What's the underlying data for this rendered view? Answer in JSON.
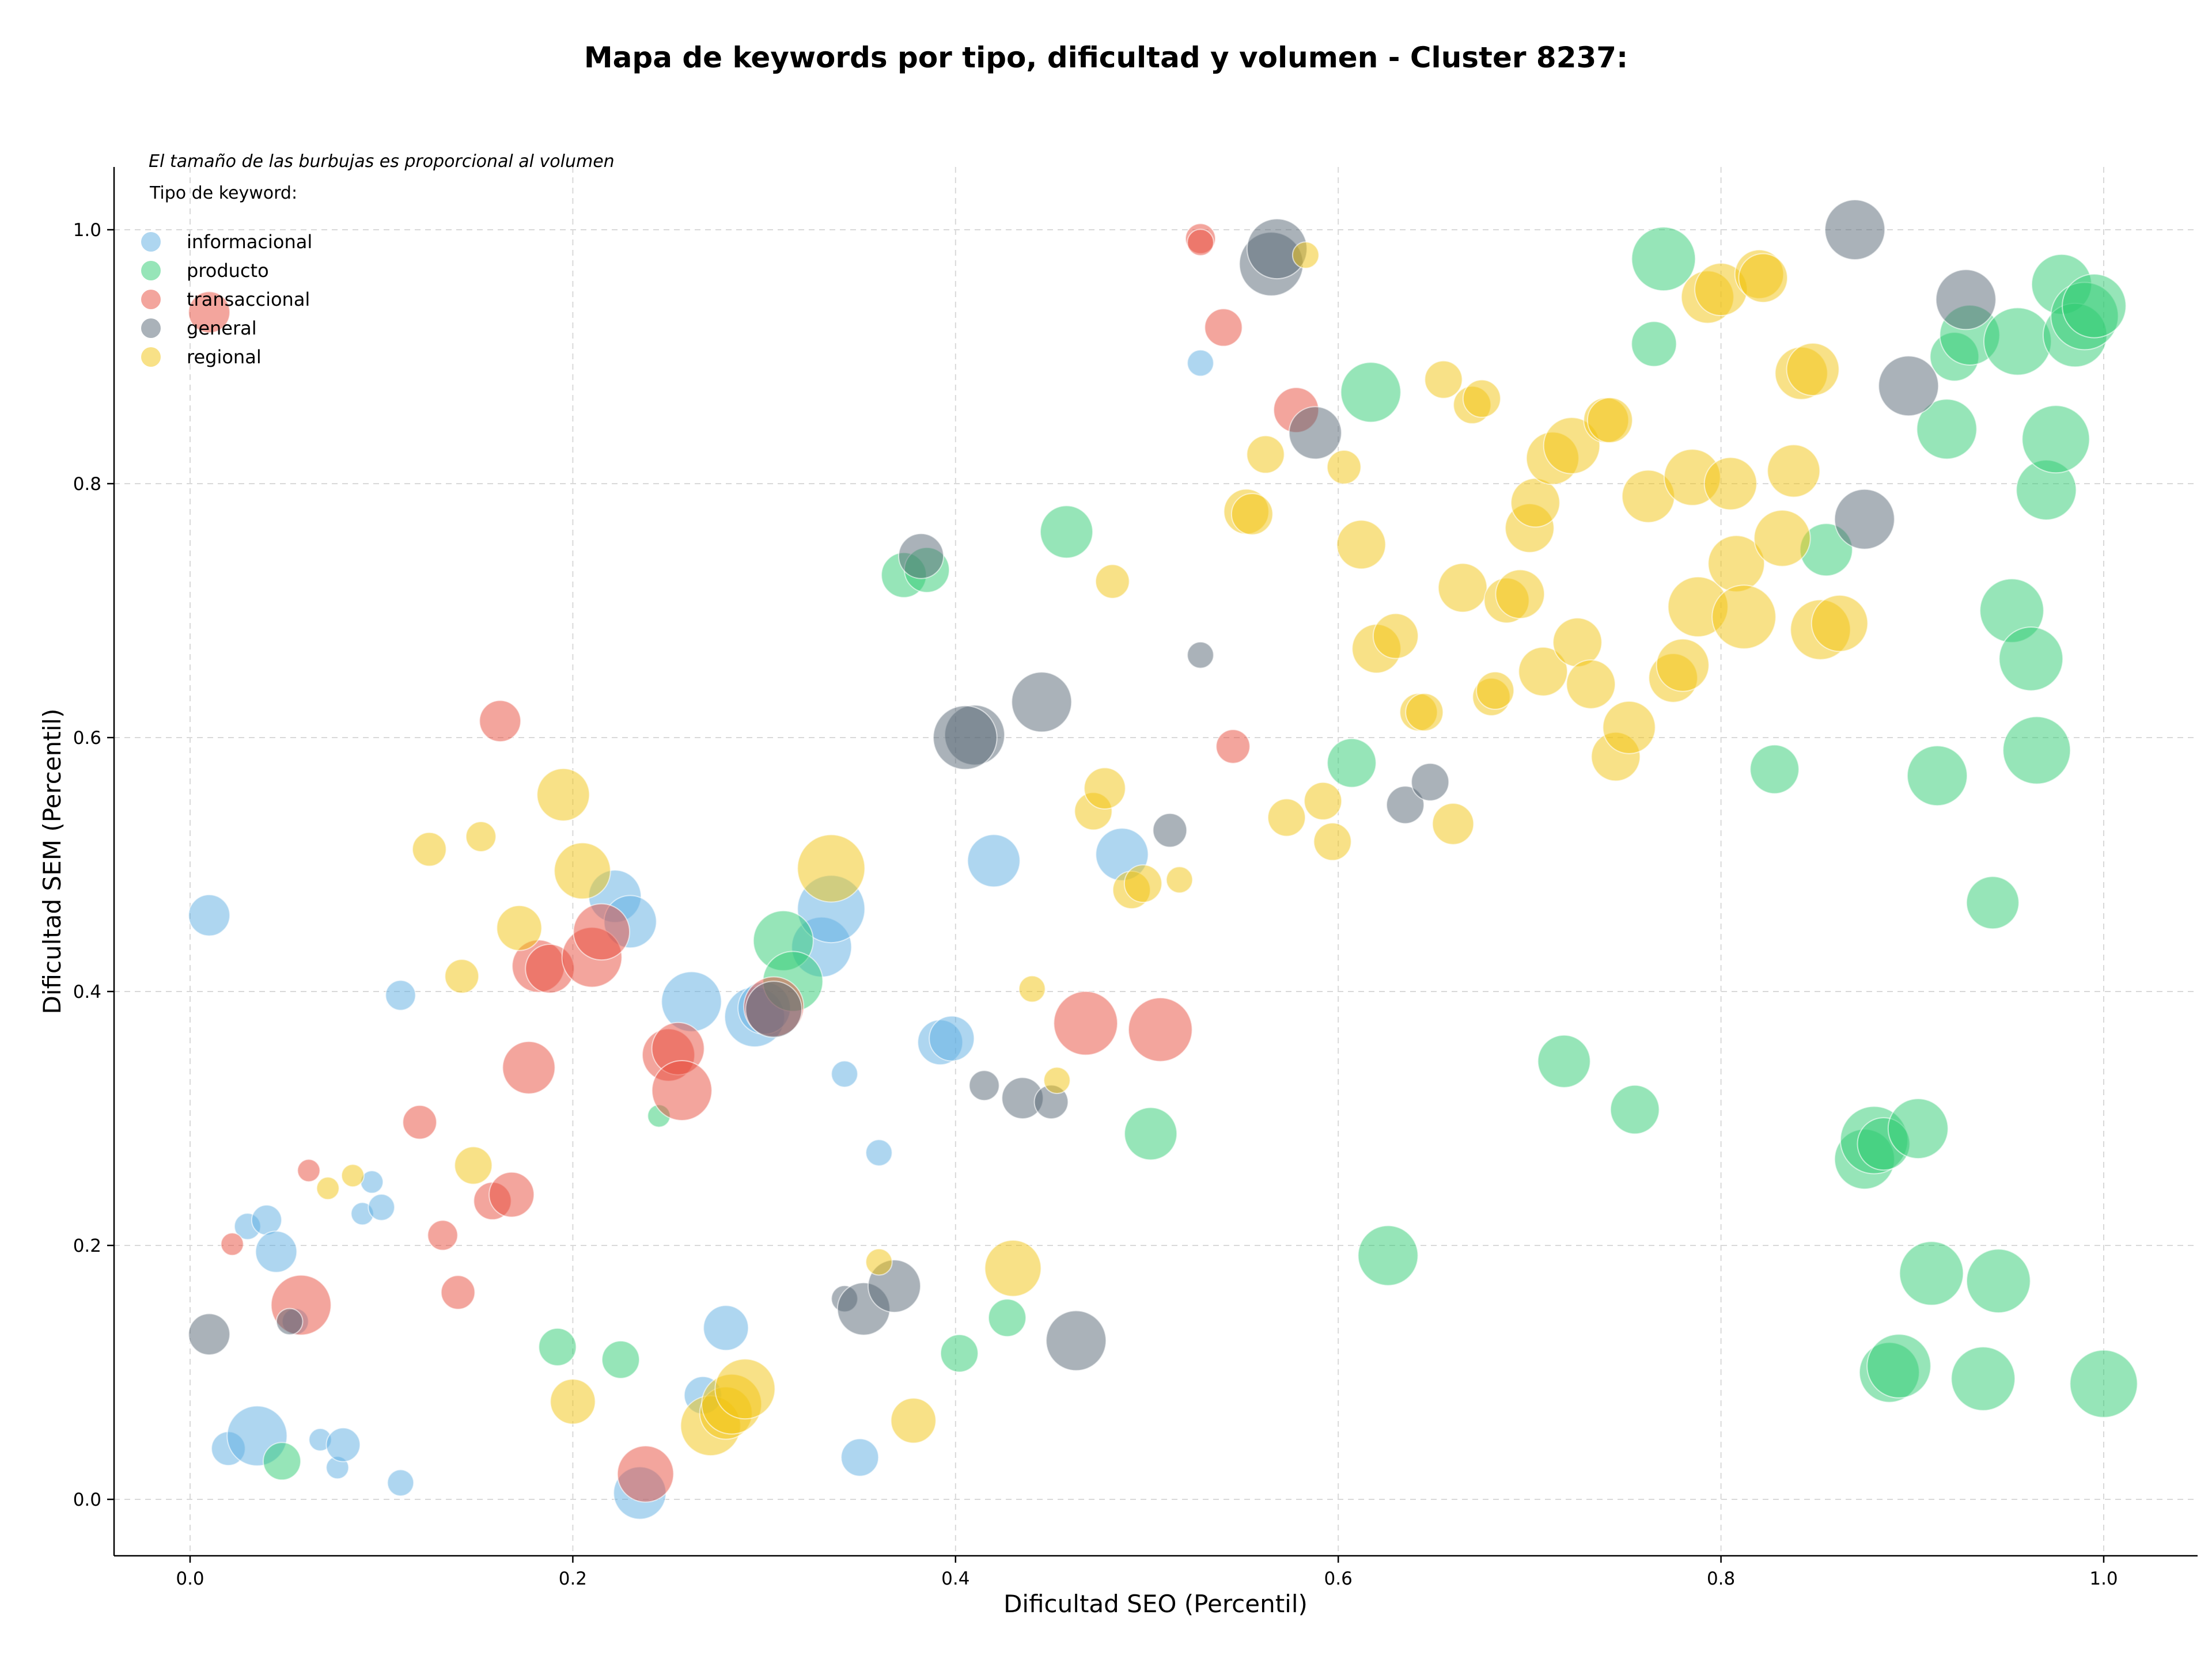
{
  "chart_data": {
    "type": "scatter",
    "title": "Mapa de keywords por tipo, dificultad y volumen - Cluster 8237:",
    "xlabel": "Dificultad SEO (Percentil)",
    "ylabel": "Dificultad SEM (Percentil)",
    "xlim": [
      -0.04,
      1.05
    ],
    "ylim": [
      -0.045,
      1.05
    ],
    "xticks": [
      0.0,
      0.2,
      0.4,
      0.6,
      0.8,
      1.0
    ],
    "yticks": [
      0.0,
      0.2,
      0.4,
      0.6,
      0.8,
      1.0
    ],
    "xtick_labels": [
      "0.0",
      "0.2",
      "0.4",
      "0.6",
      "0.8",
      "1.0"
    ],
    "ytick_labels": [
      "0.0",
      "0.2",
      "0.4",
      "0.6",
      "0.8",
      "1.0"
    ],
    "grid": true,
    "note": "El tamaño de las burbujas es proporcional al volumen",
    "legend_title": "Tipo de keyword:",
    "legend_position": "top-left",
    "series": [
      {
        "name": "informacional",
        "color": "#5dade2",
        "points": [
          [
            0.01,
            0.46,
            5.5
          ],
          [
            0.02,
            0.04,
            4.5
          ],
          [
            0.03,
            0.215,
            3.5
          ],
          [
            0.035,
            0.05,
            8
          ],
          [
            0.04,
            0.22,
            4
          ],
          [
            0.045,
            0.195,
            5.5
          ],
          [
            0.055,
            0.14,
            3.5
          ],
          [
            0.068,
            0.047,
            3
          ],
          [
            0.077,
            0.025,
            3
          ],
          [
            0.08,
            0.043,
            4.5
          ],
          [
            0.09,
            0.225,
            3
          ],
          [
            0.095,
            0.25,
            3
          ],
          [
            0.1,
            0.23,
            3.5
          ],
          [
            0.11,
            0.013,
            3.5
          ],
          [
            0.11,
            0.397,
            4
          ],
          [
            0.222,
            0.475,
            7
          ],
          [
            0.23,
            0.455,
            7
          ],
          [
            0.235,
            0.005,
            7
          ],
          [
            0.262,
            0.392,
            8
          ],
          [
            0.268,
            0.082,
            5
          ],
          [
            0.28,
            0.135,
            6
          ],
          [
            0.295,
            0.38,
            8
          ],
          [
            0.3,
            0.387,
            7
          ],
          [
            0.33,
            0.435,
            8
          ],
          [
            0.335,
            0.465,
            9
          ],
          [
            0.342,
            0.335,
            3.5
          ],
          [
            0.35,
            0.033,
            5
          ],
          [
            0.36,
            0.273,
            3.5
          ],
          [
            0.392,
            0.36,
            6
          ],
          [
            0.398,
            0.363,
            6
          ],
          [
            0.42,
            0.503,
            7
          ],
          [
            0.487,
            0.508,
            7
          ],
          [
            0.528,
            0.895,
            3.5
          ]
        ]
      },
      {
        "name": "producto",
        "color": "#2ecc71",
        "points": [
          [
            0.048,
            0.03,
            5
          ],
          [
            0.192,
            0.12,
            5
          ],
          [
            0.225,
            0.11,
            5
          ],
          [
            0.245,
            0.302,
            3
          ],
          [
            0.31,
            0.44,
            8
          ],
          [
            0.315,
            0.408,
            8
          ],
          [
            0.373,
            0.728,
            6
          ],
          [
            0.385,
            0.732,
            6
          ],
          [
            0.402,
            0.115,
            5
          ],
          [
            0.427,
            0.143,
            5
          ],
          [
            0.458,
            0.762,
            7
          ],
          [
            0.502,
            0.288,
            7
          ],
          [
            0.607,
            0.58,
            6.5
          ],
          [
            0.617,
            0.872,
            8
          ],
          [
            0.626,
            0.192,
            8
          ],
          [
            0.718,
            0.345,
            7
          ],
          [
            0.755,
            0.307,
            6.5
          ],
          [
            0.765,
            0.91,
            6
          ],
          [
            0.77,
            0.977,
            8.5
          ],
          [
            0.828,
            0.575,
            6.5
          ],
          [
            0.855,
            0.748,
            7
          ],
          [
            0.875,
            0.268,
            8
          ],
          [
            0.88,
            0.283,
            9
          ],
          [
            0.885,
            0.28,
            7
          ],
          [
            0.888,
            0.1,
            8
          ],
          [
            0.893,
            0.105,
            8.5
          ],
          [
            0.903,
            0.292,
            8
          ],
          [
            0.91,
            0.178,
            8.5
          ],
          [
            0.913,
            0.57,
            8
          ],
          [
            0.918,
            0.843,
            8
          ],
          [
            0.922,
            0.9,
            6.5
          ],
          [
            0.93,
            0.917,
            8
          ],
          [
            0.937,
            0.095,
            8.5
          ],
          [
            0.942,
            0.47,
            7
          ],
          [
            0.945,
            0.172,
            8.5
          ],
          [
            0.952,
            0.7,
            8.5
          ],
          [
            0.955,
            0.912,
            9
          ],
          [
            0.962,
            0.662,
            8.5
          ],
          [
            0.965,
            0.59,
            9
          ],
          [
            0.97,
            0.795,
            8
          ],
          [
            0.975,
            0.835,
            9
          ],
          [
            0.978,
            0.957,
            8
          ],
          [
            0.985,
            0.917,
            8.5
          ],
          [
            0.99,
            0.932,
            9
          ],
          [
            0.995,
            0.94,
            8.5
          ],
          [
            1.0,
            0.091,
            9
          ]
        ]
      },
      {
        "name": "transaccional",
        "color": "#e74c3c",
        "points": [
          [
            0.01,
            0.935,
            5.5
          ],
          [
            0.022,
            0.201,
            3
          ],
          [
            0.058,
            0.153,
            8
          ],
          [
            0.062,
            0.259,
            3
          ],
          [
            0.12,
            0.297,
            4.5
          ],
          [
            0.132,
            0.208,
            4
          ],
          [
            0.14,
            0.163,
            4.5
          ],
          [
            0.158,
            0.235,
            5
          ],
          [
            0.162,
            0.613,
            5.5
          ],
          [
            0.168,
            0.24,
            6
          ],
          [
            0.177,
            0.34,
            7
          ],
          [
            0.182,
            0.42,
            7
          ],
          [
            0.188,
            0.418,
            6.5
          ],
          [
            0.21,
            0.427,
            8
          ],
          [
            0.215,
            0.447,
            7.5
          ],
          [
            0.238,
            0.02,
            7.5
          ],
          [
            0.25,
            0.35,
            7
          ],
          [
            0.255,
            0.355,
            7
          ],
          [
            0.257,
            0.322,
            8
          ],
          [
            0.305,
            0.388,
            8
          ],
          [
            0.468,
            0.375,
            8.5
          ],
          [
            0.507,
            0.37,
            8.5
          ],
          [
            0.528,
            0.993,
            4
          ],
          [
            0.528,
            0.99,
            3.5
          ],
          [
            0.54,
            0.923,
            5
          ],
          [
            0.545,
            0.593,
            4.5
          ],
          [
            0.578,
            0.858,
            6
          ]
        ]
      },
      {
        "name": "general",
        "color": "#566573",
        "points": [
          [
            0.01,
            0.13,
            5.5
          ],
          [
            0.052,
            0.14,
            3.5
          ],
          [
            0.305,
            0.386,
            7.5
          ],
          [
            0.342,
            0.158,
            3.5
          ],
          [
            0.352,
            0.15,
            7
          ],
          [
            0.368,
            0.168,
            7
          ],
          [
            0.382,
            0.743,
            6
          ],
          [
            0.41,
            0.602,
            8
          ],
          [
            0.405,
            0.6,
            8.5
          ],
          [
            0.415,
            0.326,
            4
          ],
          [
            0.435,
            0.316,
            5.5
          ],
          [
            0.445,
            0.628,
            8
          ],
          [
            0.45,
            0.313,
            4.5
          ],
          [
            0.463,
            0.125,
            8
          ],
          [
            0.512,
            0.527,
            4.5
          ],
          [
            0.528,
            0.665,
            3.5
          ],
          [
            0.565,
            0.973,
            8.5
          ],
          [
            0.568,
            0.985,
            8
          ],
          [
            0.588,
            0.84,
            7
          ],
          [
            0.635,
            0.547,
            5
          ],
          [
            0.648,
            0.565,
            5
          ],
          [
            0.87,
            1.0,
            8
          ],
          [
            0.875,
            0.772,
            8
          ],
          [
            0.898,
            0.877,
            8
          ],
          [
            0.928,
            0.945,
            8
          ]
        ]
      },
      {
        "name": "regional",
        "color": "#f1c40f",
        "points": [
          [
            0.072,
            0.245,
            3
          ],
          [
            0.085,
            0.255,
            3
          ],
          [
            0.125,
            0.512,
            4.5
          ],
          [
            0.142,
            0.412,
            4.5
          ],
          [
            0.148,
            0.263,
            5
          ],
          [
            0.152,
            0.522,
            4
          ],
          [
            0.172,
            0.45,
            6
          ],
          [
            0.195,
            0.555,
            7
          ],
          [
            0.2,
            0.077,
            6
          ],
          [
            0.205,
            0.495,
            7.5
          ],
          [
            0.272,
            0.058,
            8
          ],
          [
            0.28,
            0.068,
            7
          ],
          [
            0.283,
            0.075,
            8
          ],
          [
            0.29,
            0.087,
            8
          ],
          [
            0.335,
            0.497,
            9
          ],
          [
            0.36,
            0.187,
            3.5
          ],
          [
            0.378,
            0.062,
            6
          ],
          [
            0.44,
            0.402,
            3.5
          ],
          [
            0.43,
            0.182,
            7.5
          ],
          [
            0.453,
            0.33,
            3.5
          ],
          [
            0.472,
            0.542,
            5
          ],
          [
            0.478,
            0.56,
            5.5
          ],
          [
            0.482,
            0.723,
            4.5
          ],
          [
            0.492,
            0.48,
            5
          ],
          [
            0.498,
            0.485,
            5
          ],
          [
            0.517,
            0.488,
            3.5
          ],
          [
            0.552,
            0.778,
            6
          ],
          [
            0.555,
            0.776,
            5.5
          ],
          [
            0.562,
            0.823,
            5
          ],
          [
            0.573,
            0.537,
            5
          ],
          [
            0.583,
            0.98,
            3.5
          ],
          [
            0.592,
            0.55,
            5
          ],
          [
            0.597,
            0.518,
            5
          ],
          [
            0.603,
            0.813,
            4.5
          ],
          [
            0.612,
            0.752,
            6.5
          ],
          [
            0.62,
            0.67,
            6.5
          ],
          [
            0.63,
            0.68,
            6
          ],
          [
            0.642,
            0.62,
            5
          ],
          [
            0.645,
            0.62,
            5
          ],
          [
            0.66,
            0.532,
            5.5
          ],
          [
            0.655,
            0.882,
            5
          ],
          [
            0.665,
            0.718,
            6.5
          ],
          [
            0.67,
            0.862,
            5
          ],
          [
            0.675,
            0.867,
            5
          ],
          [
            0.68,
            0.632,
            5
          ],
          [
            0.682,
            0.637,
            5
          ],
          [
            0.688,
            0.708,
            6
          ],
          [
            0.695,
            0.713,
            6.5
          ],
          [
            0.7,
            0.765,
            6.5
          ],
          [
            0.703,
            0.785,
            6.5
          ],
          [
            0.707,
            0.652,
            6.5
          ],
          [
            0.712,
            0.82,
            7
          ],
          [
            0.722,
            0.83,
            7.5
          ],
          [
            0.725,
            0.675,
            6.5
          ],
          [
            0.732,
            0.642,
            6.5
          ],
          [
            0.74,
            0.85,
            6
          ],
          [
            0.742,
            0.85,
            6
          ],
          [
            0.745,
            0.585,
            6.5
          ],
          [
            0.752,
            0.608,
            7
          ],
          [
            0.762,
            0.79,
            7
          ],
          [
            0.775,
            0.647,
            6.5
          ],
          [
            0.78,
            0.657,
            7
          ],
          [
            0.785,
            0.805,
            7.5
          ],
          [
            0.788,
            0.703,
            8
          ],
          [
            0.793,
            0.947,
            7
          ],
          [
            0.8,
            0.953,
            7
          ],
          [
            0.805,
            0.8,
            7
          ],
          [
            0.808,
            0.737,
            7.5
          ],
          [
            0.812,
            0.695,
            8.5
          ],
          [
            0.82,
            0.965,
            6.5
          ],
          [
            0.822,
            0.962,
            6.5
          ],
          [
            0.832,
            0.757,
            7.5
          ],
          [
            0.838,
            0.81,
            7
          ],
          [
            0.842,
            0.887,
            7
          ],
          [
            0.848,
            0.89,
            7
          ],
          [
            0.852,
            0.685,
            8
          ],
          [
            0.862,
            0.69,
            7.5
          ]
        ]
      }
    ]
  }
}
